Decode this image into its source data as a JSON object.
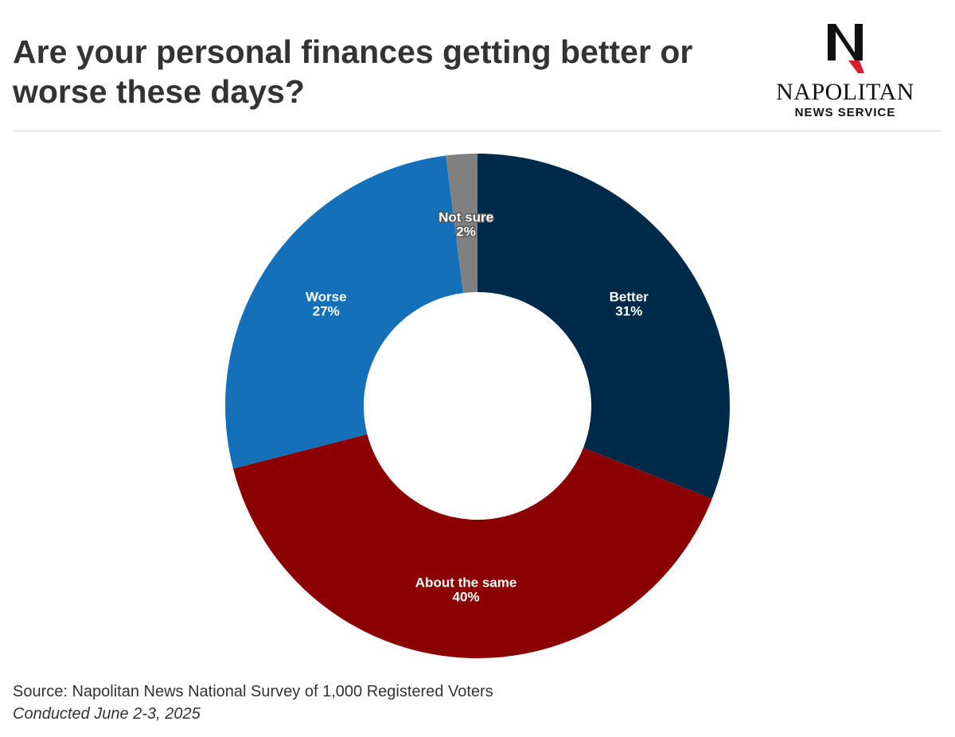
{
  "header": {
    "title": "Are your personal finances getting better or worse these days?"
  },
  "brand": {
    "name": "NAPOLITAN",
    "subtitle": "NEWS SERVICE",
    "logo_letter": "N",
    "logo_icon": "eagle-n-logo-icon"
  },
  "chart_data": {
    "type": "pie",
    "donut": true,
    "slices": [
      {
        "label": "Better",
        "value": 31,
        "display": "31%",
        "color": "#002a4a"
      },
      {
        "label": "About the same",
        "value": 40,
        "display": "40%",
        "color": "#8b0000"
      },
      {
        "label": "Worse",
        "value": 27,
        "display": "27%",
        "color": "#1470b8"
      },
      {
        "label": "Not sure",
        "value": 2,
        "display": "2%",
        "color": "#808080"
      }
    ],
    "start_angle_deg": 0,
    "direction": "clockwise"
  },
  "footer": {
    "source": "Source: Napolitan News National Survey of 1,000 Registered Voters",
    "conducted": "Conducted June 2-3, 2025"
  }
}
